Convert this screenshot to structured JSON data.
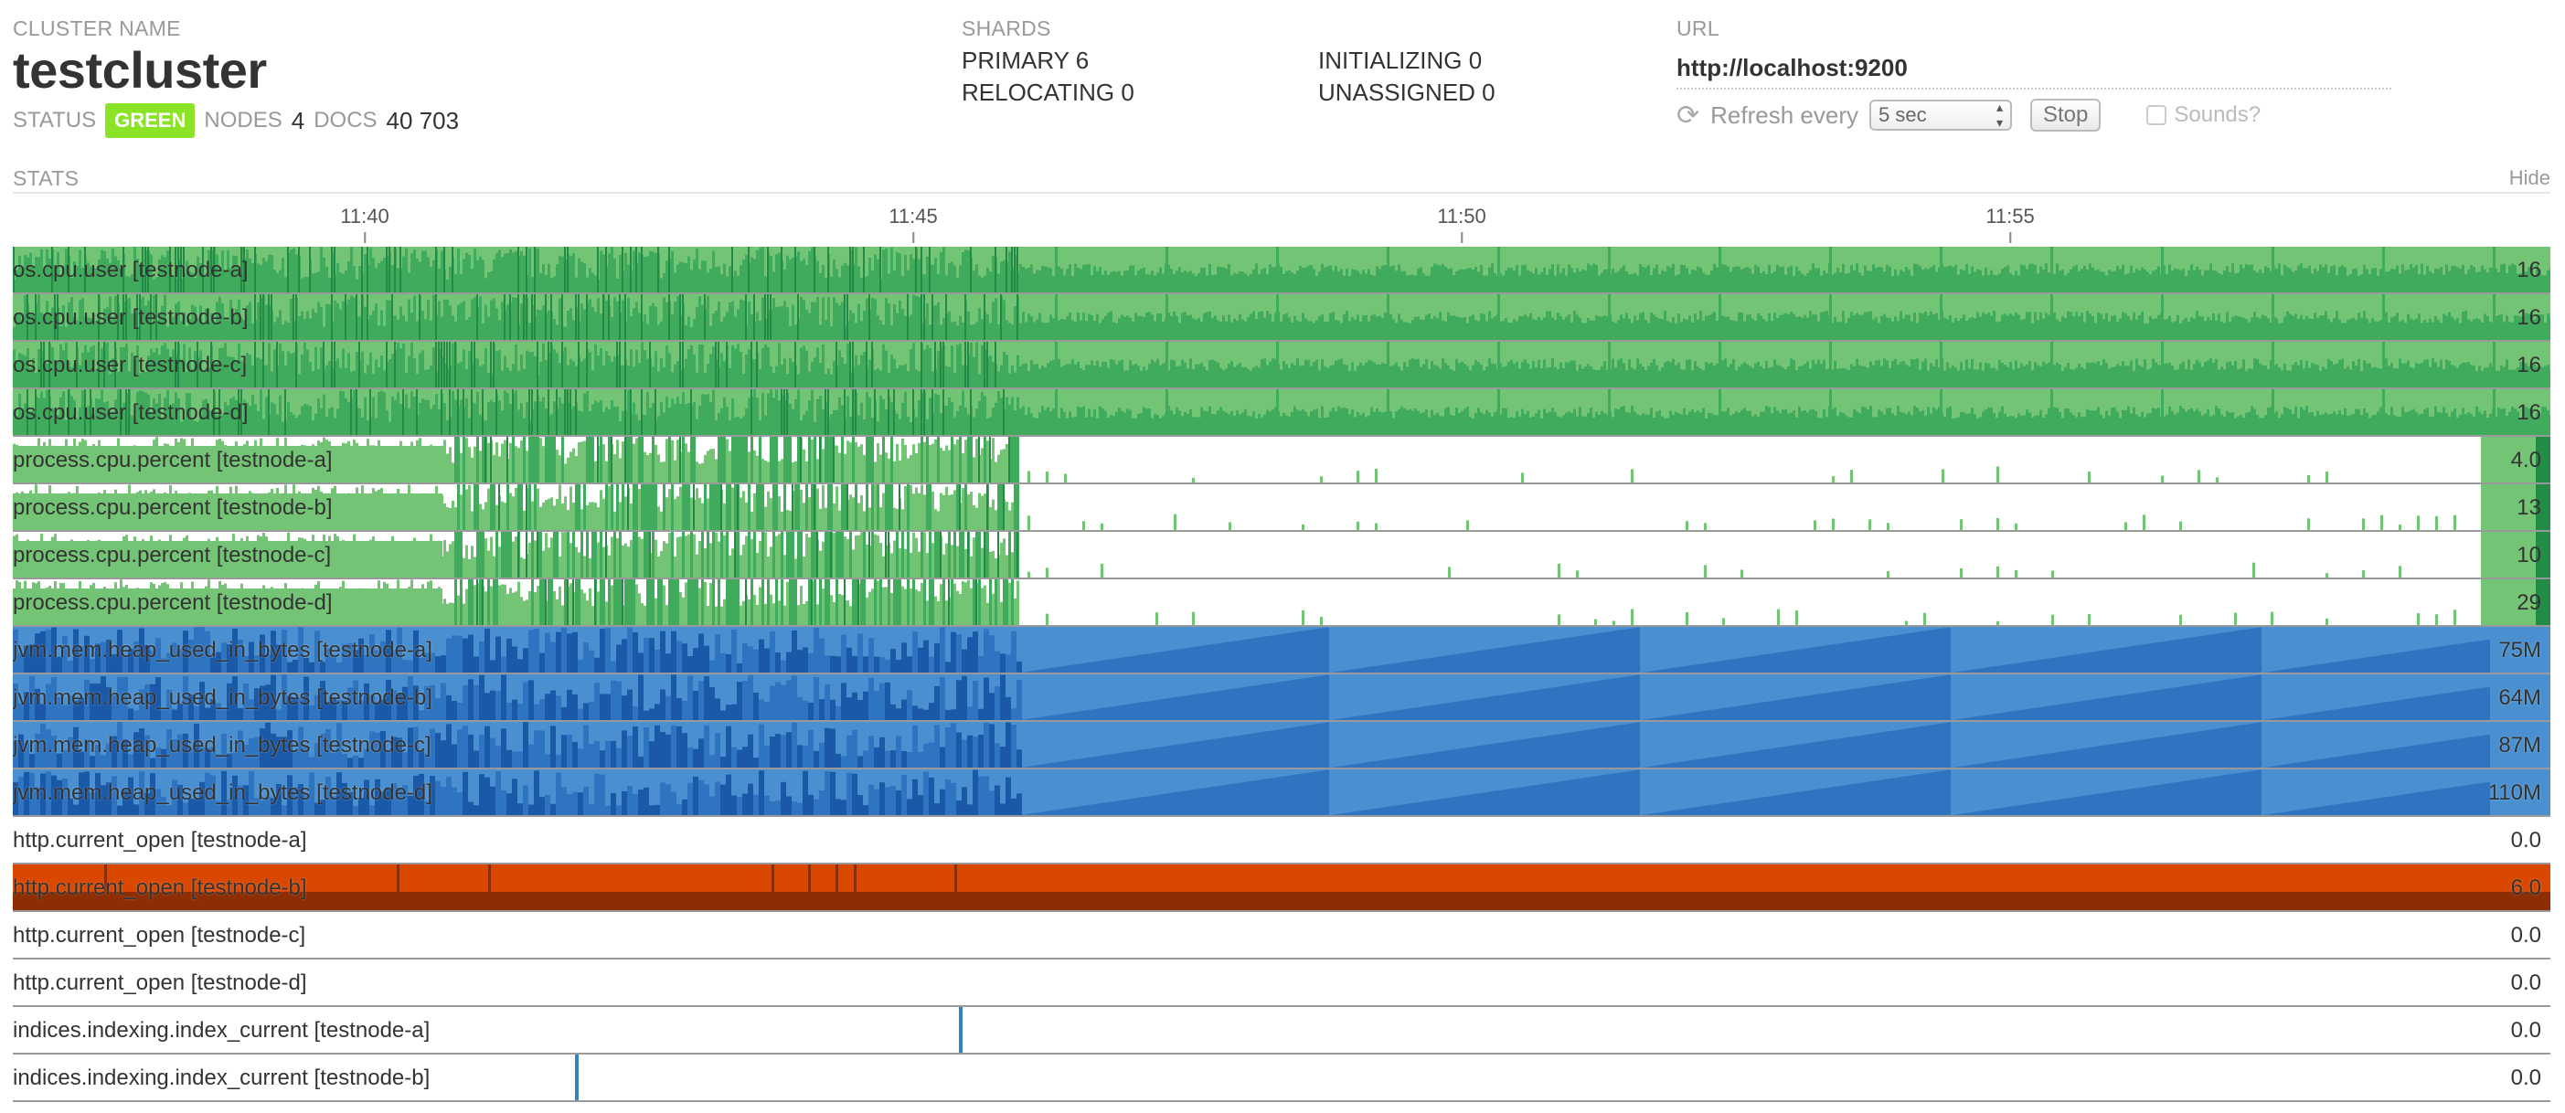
{
  "cluster": {
    "label": "CLUSTER NAME",
    "name": "testcluster",
    "status_label": "STATUS",
    "status": "GREEN",
    "nodes_label": "NODES",
    "nodes": "4",
    "docs_label": "DOCS",
    "docs": "40 703"
  },
  "shards": {
    "label": "SHARDS",
    "primary_label": "PRIMARY",
    "primary": "6",
    "initializing_label": "INITIALIZING",
    "initializing": "0",
    "relocating_label": "RELOCATING",
    "relocating": "0",
    "unassigned_label": "UNASSIGNED",
    "unassigned": "0"
  },
  "url": {
    "label": "URL",
    "value": "http://localhost:9200",
    "refresh_label": "Refresh every",
    "refresh_value": "5 sec",
    "stop_label": "Stop",
    "sounds_label": "Sounds?"
  },
  "stats": {
    "label": "STATS",
    "hide_label": "Hide",
    "ticks": [
      "11:40",
      "11:45",
      "11:50",
      "11:55"
    ]
  },
  "rows": [
    {
      "label": "os.cpu.user [testnode-a]",
      "value": "16",
      "type": "cpu"
    },
    {
      "label": "os.cpu.user [testnode-b]",
      "value": "16",
      "type": "cpu"
    },
    {
      "label": "os.cpu.user [testnode-c]",
      "value": "16",
      "type": "cpu"
    },
    {
      "label": "os.cpu.user [testnode-d]",
      "value": "16",
      "type": "cpu"
    },
    {
      "label": "process.cpu.percent [testnode-a]",
      "value": "4.0",
      "type": "proc"
    },
    {
      "label": "process.cpu.percent [testnode-b]",
      "value": "13",
      "type": "proc"
    },
    {
      "label": "process.cpu.percent [testnode-c]",
      "value": "10",
      "type": "proc"
    },
    {
      "label": "process.cpu.percent [testnode-d]",
      "value": "29",
      "type": "proc"
    },
    {
      "label": "jvm.mem.heap_used_in_bytes [testnode-a]",
      "value": "75M",
      "type": "heap"
    },
    {
      "label": "jvm.mem.heap_used_in_bytes [testnode-b]",
      "value": "64M",
      "type": "heap"
    },
    {
      "label": "jvm.mem.heap_used_in_bytes [testnode-c]",
      "value": "87M",
      "type": "heap"
    },
    {
      "label": "jvm.mem.heap_used_in_bytes [testnode-d]",
      "value": "110M",
      "type": "heap"
    },
    {
      "label": "http.current_open [testnode-a]",
      "value": "0.0",
      "type": "empty"
    },
    {
      "label": "http.current_open [testnode-b]",
      "value": "6.0",
      "type": "http"
    },
    {
      "label": "http.current_open [testnode-c]",
      "value": "0.0",
      "type": "empty"
    },
    {
      "label": "http.current_open [testnode-d]",
      "value": "0.0",
      "type": "empty"
    },
    {
      "label": "indices.indexing.index_current [testnode-a]",
      "value": "0.0",
      "type": "spike"
    },
    {
      "label": "indices.indexing.index_current [testnode-b]",
      "value": "0.0",
      "type": "spike"
    }
  ],
  "colors": {
    "green_light": "#74c476",
    "green_mid": "#41ab5d",
    "green_dark": "#238b45",
    "blue_light": "#4a90d0",
    "blue_mid": "#2f74c0",
    "blue_dark": "#1a59a8",
    "orange": "#d94701",
    "orange_dark": "#8c2d04",
    "spike": "#3182bd",
    "status_green": "#8be326"
  }
}
